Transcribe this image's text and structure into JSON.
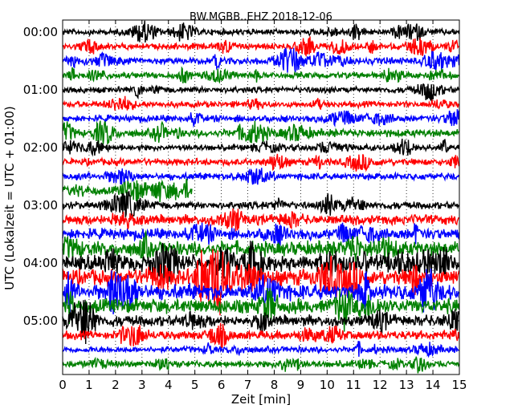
{
  "chart_data": {
    "type": "line",
    "title": "BW.MGBB..EHZ 2018-12-06",
    "xlabel": "Zeit  [min]",
    "ylabel": "UTC (Lokalzeit = UTC + 01:00)",
    "xlim": [
      0,
      15
    ],
    "x_ticks": [
      "0",
      "1",
      "2",
      "3",
      "4",
      "5",
      "6",
      "7",
      "8",
      "9",
      "10",
      "11",
      "12",
      "13",
      "14",
      "15"
    ],
    "y_tick_labels": [
      "00:00",
      "01:00",
      "02:00",
      "03:00",
      "04:00",
      "05:00"
    ],
    "grid": "vertical dotted lines at each minute",
    "color_cycle": [
      "#000000",
      "#ff0000",
      "#0000ff",
      "#008000"
    ],
    "trace_interval_min": 15,
    "series": [
      {
        "start": "00:00",
        "color": "#000000",
        "amplitude": 0.25
      },
      {
        "start": "00:15",
        "color": "#ff0000",
        "amplitude": 0.25
      },
      {
        "start": "00:30",
        "color": "#0000ff",
        "amplitude": 0.28
      },
      {
        "start": "00:45",
        "color": "#008000",
        "amplitude": 0.25
      },
      {
        "start": "01:00",
        "color": "#000000",
        "amplitude": 0.25
      },
      {
        "start": "01:15",
        "color": "#ff0000",
        "amplitude": 0.25
      },
      {
        "start": "01:30",
        "color": "#0000ff",
        "amplitude": 0.28
      },
      {
        "start": "01:45",
        "color": "#008000",
        "amplitude": 0.32
      },
      {
        "start": "02:00",
        "color": "#000000",
        "amplitude": 0.25
      },
      {
        "start": "02:15",
        "color": "#ff0000",
        "amplitude": 0.28
      },
      {
        "start": "02:30",
        "color": "#0000ff",
        "amplitude": 0.28
      },
      {
        "start": "02:45",
        "color": "#008000",
        "amplitude": 0.32,
        "end_min": 4.9
      },
      {
        "start": "03:00",
        "color": "#000000",
        "amplitude": 0.3
      },
      {
        "start": "03:15",
        "color": "#ff0000",
        "amplitude": 0.4
      },
      {
        "start": "03:30",
        "color": "#0000ff",
        "amplitude": 0.45
      },
      {
        "start": "03:45",
        "color": "#008000",
        "amplitude": 0.6
      },
      {
        "start": "04:00",
        "color": "#000000",
        "amplitude": 0.65
      },
      {
        "start": "04:15",
        "color": "#ff0000",
        "amplitude": 0.65
      },
      {
        "start": "04:30",
        "color": "#0000ff",
        "amplitude": 0.65
      },
      {
        "start": "04:45",
        "color": "#008000",
        "amplitude": 0.6
      },
      {
        "start": "05:00",
        "color": "#000000",
        "amplitude": 0.45
      },
      {
        "start": "05:15",
        "color": "#ff0000",
        "amplitude": 0.35
      },
      {
        "start": "05:30",
        "color": "#0000ff",
        "amplitude": 0.25
      },
      {
        "start": "05:45",
        "color": "#008000",
        "amplitude": 0.28
      }
    ]
  }
}
